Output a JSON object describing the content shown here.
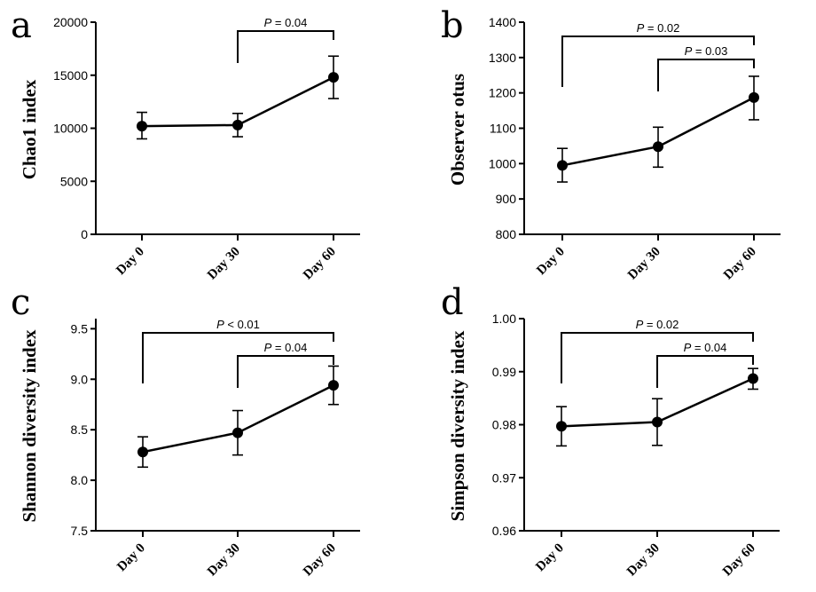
{
  "chart_data": [
    {
      "panel": "a",
      "type": "line",
      "ylabel": "Chao1 index",
      "categories": [
        "Day 0",
        "Day 30",
        "Day 60"
      ],
      "values": [
        10200,
        10300,
        14800
      ],
      "error": [
        [
          9000,
          11500
        ],
        [
          9200,
          11400
        ],
        [
          12800,
          16800
        ]
      ],
      "ylim": [
        0,
        20000
      ],
      "yticks": [
        0,
        5000,
        10000,
        15000,
        20000
      ],
      "yticklabels": [
        "0",
        "5000",
        "10000",
        "15000",
        "20000"
      ],
      "comparisons": [
        {
          "from": 1,
          "to": 2,
          "p": "0.04",
          "op": "=",
          "level": 1
        }
      ]
    },
    {
      "panel": "b",
      "type": "line",
      "ylabel": "Observer otus",
      "categories": [
        "Day 0",
        "Day 30",
        "Day 60"
      ],
      "values": [
        995,
        1048,
        1187
      ],
      "error": [
        [
          948,
          1043
        ],
        [
          990,
          1103
        ],
        [
          1124,
          1247
        ]
      ],
      "ylim": [
        800,
        1400
      ],
      "yticks": [
        800,
        900,
        1000,
        1100,
        1200,
        1300,
        1400
      ],
      "yticklabels": [
        "800",
        "900",
        "1000",
        "1100",
        "1200",
        "1300",
        "1400"
      ],
      "comparisons": [
        {
          "from": 0,
          "to": 2,
          "p": "0.02",
          "op": "=",
          "level": 2
        },
        {
          "from": 1,
          "to": 2,
          "p": "0.03",
          "op": "=",
          "level": 1
        }
      ]
    },
    {
      "panel": "c",
      "type": "line",
      "ylabel": "Shannon diversity index",
      "categories": [
        "Day 0",
        "Day 30",
        "Day 60"
      ],
      "values": [
        8.28,
        8.47,
        8.94
      ],
      "error": [
        [
          8.13,
          8.43
        ],
        [
          8.25,
          8.69
        ],
        [
          8.75,
          9.13
        ]
      ],
      "ylim": [
        7.5,
        9.6
      ],
      "yticks": [
        7.5,
        8.0,
        8.5,
        9.0,
        9.5
      ],
      "yticklabels": [
        "7.5",
        "8.0",
        "8.5",
        "9.0",
        "9.5"
      ],
      "comparisons": [
        {
          "from": 0,
          "to": 2,
          "p": "0.01",
          "op": "<",
          "level": 2
        },
        {
          "from": 1,
          "to": 2,
          "p": "0.04",
          "op": "=",
          "level": 1
        }
      ]
    },
    {
      "panel": "d",
      "type": "line",
      "ylabel": "Simpson diversity index",
      "categories": [
        "Day 0",
        "Day 30",
        "Day 60"
      ],
      "values": [
        0.9797,
        0.9805,
        0.9887
      ],
      "error": [
        [
          0.976,
          0.9834
        ],
        [
          0.9761,
          0.9849
        ],
        [
          0.9867,
          0.9906
        ]
      ],
      "ylim": [
        0.96,
        1.0
      ],
      "yticks": [
        0.96,
        0.97,
        0.98,
        0.99,
        1.0
      ],
      "yticklabels": [
        "0.96",
        "0.97",
        "0.98",
        "0.99",
        "1.00"
      ],
      "comparisons": [
        {
          "from": 0,
          "to": 2,
          "p": "0.02",
          "op": "=",
          "level": 2
        },
        {
          "from": 1,
          "to": 2,
          "p": "0.04",
          "op": "=",
          "level": 1
        }
      ]
    }
  ]
}
